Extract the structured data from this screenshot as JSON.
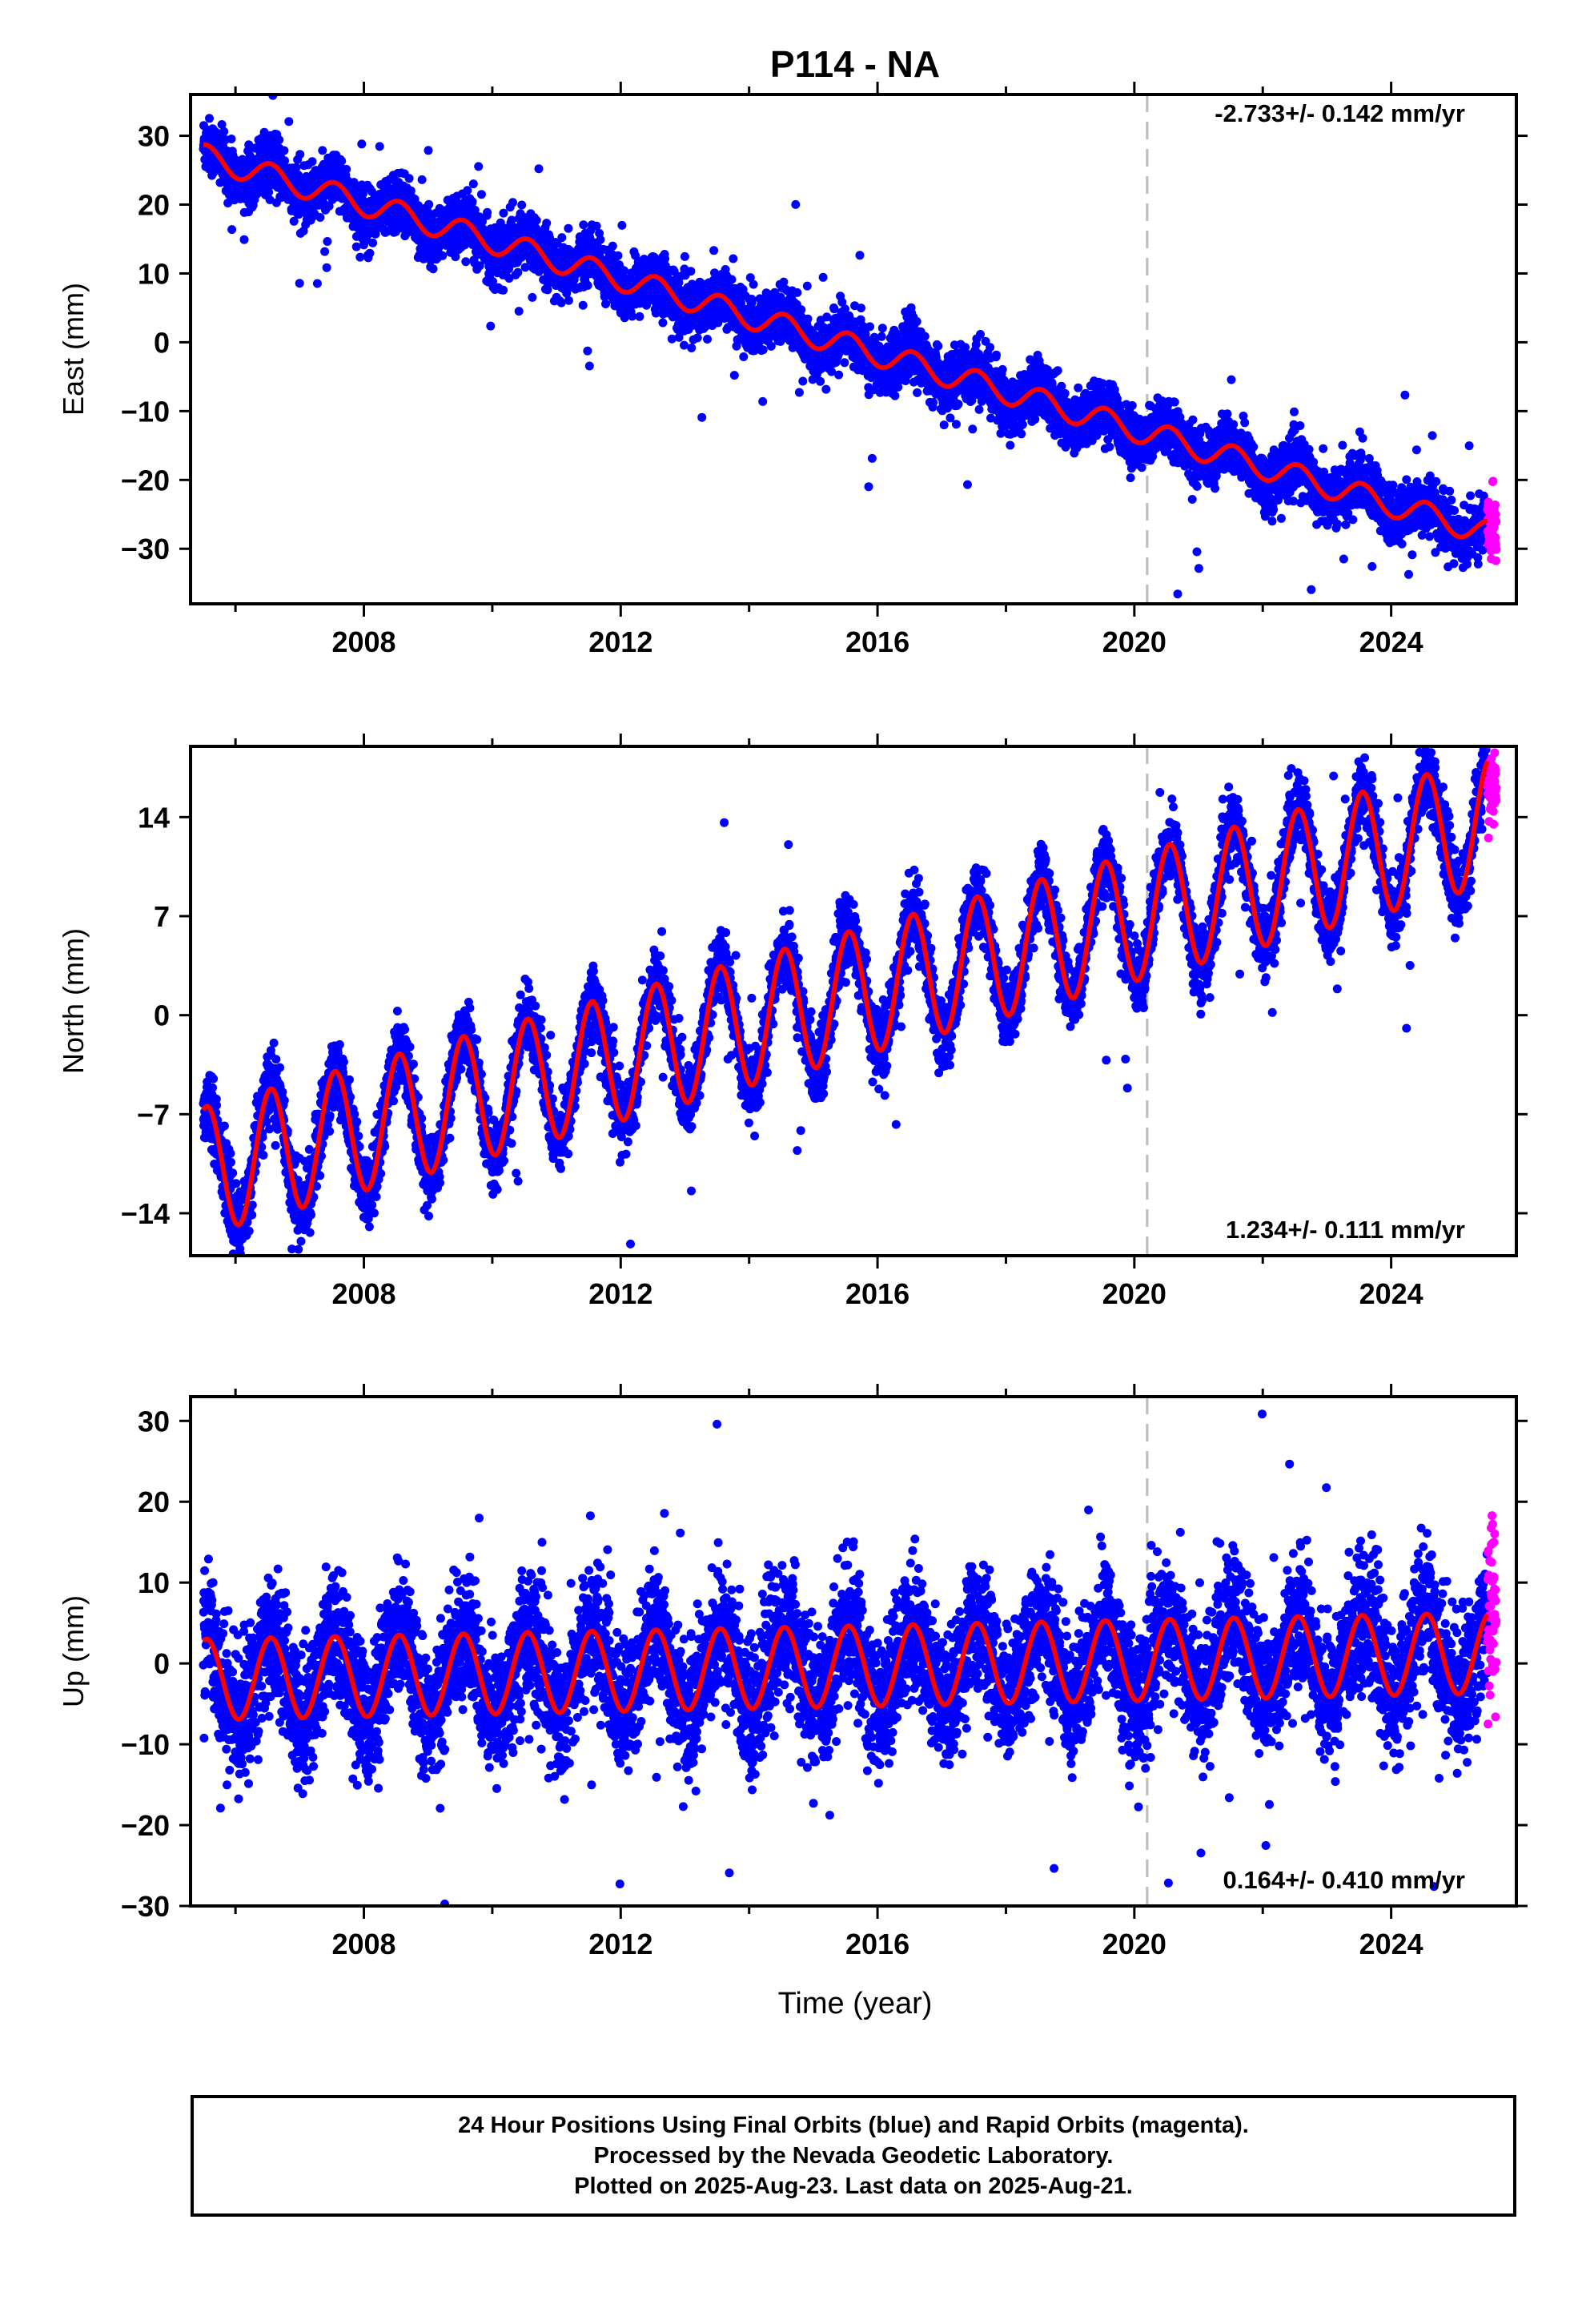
{
  "title": "P114 - NA",
  "x_axis_label": "Time (year)",
  "caption": [
    "24 Hour Positions Using Final Orbits (blue) and Rapid Orbits (magenta).",
    "Processed by the Nevada Geodetic Laboratory.",
    "Plotted on 2025-Aug-23. Last data on 2025-Aug-21."
  ],
  "colors": {
    "final_orbits": "#0000ff",
    "rapid_orbits": "#ff00ff",
    "model_fit": "#ff0000",
    "break_line": "#bbbbbb"
  },
  "chart_data": [
    {
      "type": "scatter",
      "component": "east",
      "ylabel": "East (mm)",
      "xlim": [
        2005.3,
        2025.95
      ],
      "ylim": [
        -38,
        36
      ],
      "xticks": [
        2008,
        2012,
        2016,
        2020,
        2024
      ],
      "yticks": [
        -30,
        -20,
        -10,
        0,
        10,
        20,
        30
      ],
      "velocity_label": "-2.733+/- 0.142 mm/yr",
      "velocity_label_position": "top-right",
      "break_line_x": 2020.2,
      "series": [
        {
          "name": "Final Orbits (blue)",
          "time_start": 2005.5,
          "time_end": 2025.5,
          "start_value": 27,
          "trend_mm_per_yr": -2.733,
          "seasonal_amplitude": 1.8,
          "scatter": 2.0
        },
        {
          "name": "Rapid Orbits (magenta)",
          "time_start": 2025.5,
          "time_end": 2025.64,
          "center_value": -27,
          "scatter": 3.0
        }
      ]
    },
    {
      "type": "scatter",
      "component": "north",
      "ylabel": "North (mm)",
      "xlim": [
        2005.3,
        2025.95
      ],
      "ylim": [
        -17,
        19
      ],
      "xticks": [
        2008,
        2012,
        2016,
        2020,
        2024
      ],
      "yticks": [
        -14,
        -7,
        0,
        7,
        14
      ],
      "velocity_label": "1.234+/- 0.111 mm/yr",
      "velocity_label_position": "bottom-right",
      "break_line_x": 2020.2,
      "series": [
        {
          "name": "Final Orbits (blue)",
          "time_start": 2005.5,
          "time_end": 2025.5,
          "start_value": -11,
          "trend_mm_per_yr": 1.234,
          "seasonal_amplitude": 4.5,
          "scatter": 1.2
        },
        {
          "name": "Rapid Orbits (magenta)",
          "time_start": 2025.5,
          "time_end": 2025.64,
          "center_value": 16,
          "scatter": 1.5
        }
      ]
    },
    {
      "type": "scatter",
      "component": "up",
      "ylabel": "Up (mm)",
      "xlim": [
        2005.3,
        2025.95
      ],
      "ylim": [
        -30,
        33
      ],
      "xticks": [
        2008,
        2012,
        2016,
        2020,
        2024
      ],
      "yticks": [
        -30,
        -20,
        -10,
        0,
        10,
        20,
        30
      ],
      "velocity_label": "0.164+/- 0.410 mm/yr",
      "velocity_label_position": "bottom-right",
      "break_line_x": 2020.2,
      "series": [
        {
          "name": "Final Orbits (blue)",
          "time_start": 2005.5,
          "time_end": 2025.5,
          "start_value": -2,
          "trend_mm_per_yr": 0.164,
          "seasonal_amplitude": 5.0,
          "scatter": 4.0
        },
        {
          "name": "Rapid Orbits (magenta)",
          "time_start": 2025.5,
          "time_end": 2025.64,
          "center_value": 7,
          "scatter": 6.0
        }
      ]
    }
  ]
}
